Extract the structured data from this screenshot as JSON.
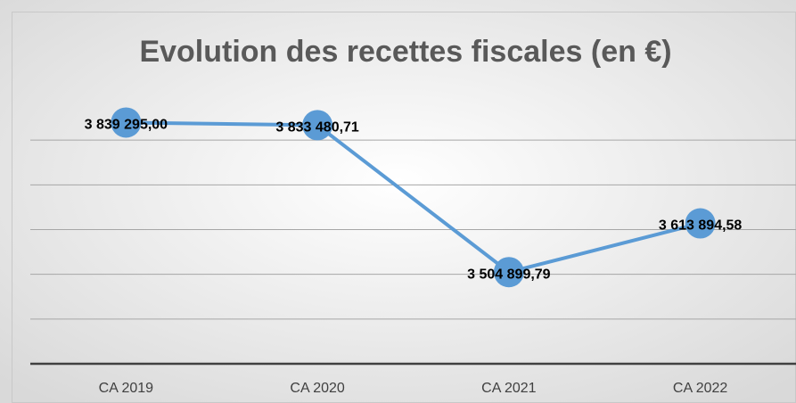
{
  "chart_data": {
    "type": "line",
    "title": "Evolution des recettes fiscales (en €)",
    "categories": [
      "CA 2019",
      "CA 2020",
      "CA 2021",
      "CA 2022"
    ],
    "series": [
      {
        "name": null,
        "color": "#5b9bd5",
        "values": [
          3839295.0,
          3833480.71,
          3504899.79,
          3613894.58
        ],
        "value_labels": [
          "3 839 295,00",
          "3 833 480,71",
          "3 504 899,79",
          "3 613 894,58"
        ]
      }
    ],
    "ylim": [
      3300000,
      3900000
    ],
    "yticks": [
      3300000,
      3400000,
      3500000,
      3600000,
      3700000,
      3800000
    ],
    "grid": true
  }
}
